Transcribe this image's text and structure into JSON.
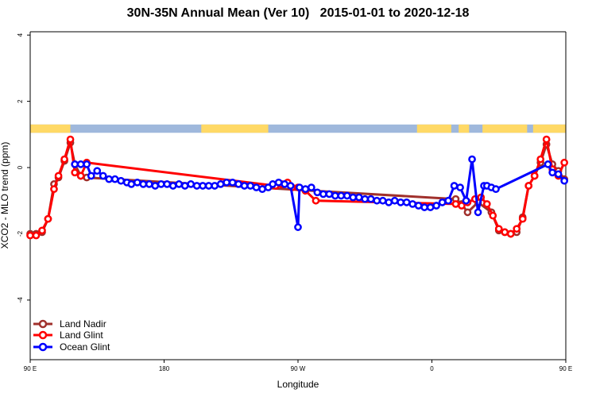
{
  "title": "30N-35N Annual Mean (Ver 10)   2015-01-01 to 2020-12-18",
  "colors": {
    "land_nadir": "#a0302c",
    "land_glint": "#ff0000",
    "ocean_glint": "#0000ff",
    "land_band": "#ffd966",
    "ocean_band": "#9fb8dc"
  },
  "chart_data": {
    "type": "line",
    "title": "30N-35N Annual Mean (Ver 10)   2015-01-01 to 2020-12-18",
    "xlabel": "Longitude",
    "ylabel": "XCO2 - MLO trend (ppm)",
    "xlim": [
      90,
      450
    ],
    "ylim": [
      -5.8,
      4.1
    ],
    "x_ticks": [
      {
        "value": 90,
        "label": "90 E"
      },
      {
        "value": 180,
        "label": "180"
      },
      {
        "value": 270,
        "label": "90 W"
      },
      {
        "value": 360,
        "label": "0"
      },
      {
        "value": 450,
        "label": "90 E"
      },
      {
        "value": 540,
        "label": "180"
      }
    ],
    "y_ticks": [
      {
        "value": -4,
        "label": "-4"
      },
      {
        "value": -2,
        "label": "-2"
      },
      {
        "value": 0,
        "label": "0"
      },
      {
        "value": 2,
        "label": "2"
      },
      {
        "value": 4,
        "label": "4"
      }
    ],
    "legend_position": "bottom-left",
    "surface_band": {
      "y_range": [
        1.05,
        1.3
      ],
      "land_segments": [
        [
          90,
          117
        ],
        [
          205,
          250
        ],
        [
          350,
          373
        ],
        [
          378,
          385
        ],
        [
          394,
          424
        ],
        [
          428,
          450
        ]
      ]
    },
    "series": [
      {
        "name": "Land Nadir",
        "key": "land_nadir",
        "x": [
          90,
          94,
          98,
          102,
          106,
          109,
          113,
          117,
          120,
          124,
          128,
          376,
          380,
          384,
          391,
          400,
          405,
          409,
          413,
          417,
          421,
          425,
          429,
          433,
          437,
          441,
          445,
          449
        ],
        "y": [
          -2.0,
          -2.0,
          -1.95,
          -1.55,
          -0.5,
          -0.3,
          0.2,
          0.75,
          0.1,
          -0.25,
          -0.3,
          -0.95,
          -1.1,
          -1.35,
          -1.05,
          -1.35,
          -1.9,
          -1.95,
          -2.0,
          -1.95,
          -1.5,
          -0.55,
          -0.25,
          0.15,
          0.7,
          0.1,
          -0.1,
          -0.35
        ]
      },
      {
        "name": "Land Glint",
        "key": "land_glint",
        "x": [
          90,
          94,
          98,
          102,
          106,
          109,
          113,
          117,
          120,
          124,
          128,
          255,
          259,
          263,
          266,
          270,
          275,
          282,
          376,
          380,
          384,
          389,
          393,
          397,
          401,
          405,
          409,
          413,
          417,
          421,
          425,
          429,
          433,
          437,
          441,
          445,
          449
        ],
        "y": [
          -2.05,
          -2.05,
          -1.9,
          -1.55,
          -0.65,
          -0.25,
          0.25,
          0.85,
          -0.15,
          -0.25,
          0.15,
          -0.55,
          -0.5,
          -0.45,
          -0.6,
          -0.6,
          -0.7,
          -1.0,
          -1.1,
          -1.15,
          -1.05,
          -0.95,
          -0.9,
          -1.1,
          -1.45,
          -1.85,
          -1.95,
          -2.0,
          -1.85,
          -1.55,
          -0.55,
          -0.25,
          0.25,
          0.85,
          -0.05,
          -0.25,
          0.15
        ]
      },
      {
        "name": "Ocean Glint",
        "key": "ocean_glint",
        "x": [
          120,
          124,
          128,
          131,
          135,
          139,
          143,
          147,
          151,
          155,
          158,
          162,
          166,
          170,
          174,
          178,
          182,
          186,
          190,
          194,
          198,
          202,
          206,
          210,
          214,
          218,
          222,
          226,
          230,
          234,
          238,
          242,
          246,
          250,
          253,
          257,
          261,
          265,
          270,
          271,
          275,
          279,
          283,
          287,
          291,
          295,
          299,
          303,
          307,
          311,
          315,
          319,
          323,
          327,
          331,
          335,
          339,
          343,
          347,
          351,
          355,
          359,
          363,
          367,
          371,
          375,
          379,
          383,
          387,
          391,
          395,
          397,
          400,
          403,
          438,
          441,
          445,
          449
        ],
        "y": [
          0.1,
          0.1,
          0.1,
          -0.25,
          -0.1,
          -0.25,
          -0.35,
          -0.35,
          -0.4,
          -0.45,
          -0.5,
          -0.45,
          -0.5,
          -0.5,
          -0.55,
          -0.5,
          -0.5,
          -0.55,
          -0.5,
          -0.55,
          -0.5,
          -0.55,
          -0.55,
          -0.55,
          -0.55,
          -0.5,
          -0.45,
          -0.45,
          -0.5,
          -0.55,
          -0.55,
          -0.6,
          -0.65,
          -0.6,
          -0.5,
          -0.45,
          -0.5,
          -0.55,
          -1.8,
          -0.6,
          -0.65,
          -0.6,
          -0.75,
          -0.8,
          -0.8,
          -0.85,
          -0.85,
          -0.85,
          -0.9,
          -0.9,
          -0.95,
          -0.95,
          -1.0,
          -1.0,
          -1.05,
          -1.0,
          -1.05,
          -1.05,
          -1.1,
          -1.15,
          -1.2,
          -1.2,
          -1.15,
          -1.05,
          -1.0,
          -0.55,
          -0.6,
          -1.0,
          0.25,
          -1.35,
          -0.55,
          -0.55,
          -0.6,
          -0.65,
          0.1,
          -0.15,
          -0.2,
          -0.4
        ]
      }
    ]
  }
}
